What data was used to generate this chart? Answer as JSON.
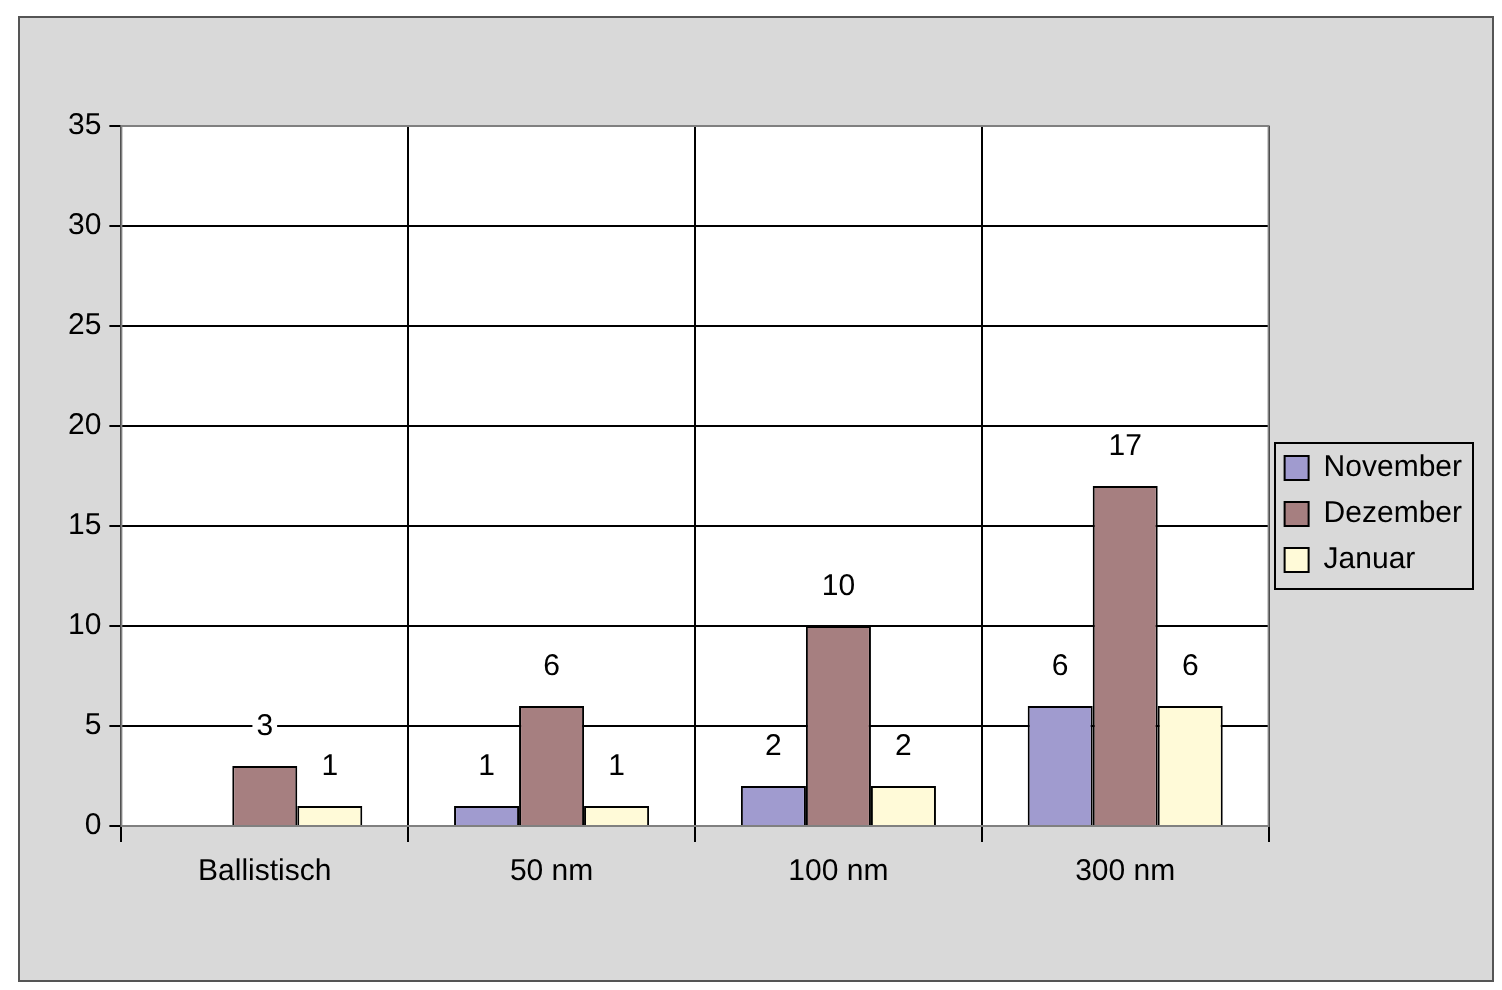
{
  "chart_data": {
    "type": "bar",
    "categories": [
      "Ballistisch",
      "50 nm",
      "100 nm",
      "300 nm"
    ],
    "series": [
      {
        "name": "November",
        "color": "#a09bcf",
        "values": [
          null,
          1,
          2,
          6
        ]
      },
      {
        "name": "Dezember",
        "color": "#a67f80",
        "values": [
          3,
          6,
          10,
          17
        ]
      },
      {
        "name": "Januar",
        "color": "#fffad8",
        "values": [
          1,
          1,
          2,
          6
        ]
      }
    ],
    "ylim": [
      0,
      35
    ],
    "yticks": [
      0,
      5,
      10,
      15,
      20,
      25,
      30,
      35
    ],
    "grid": true,
    "legend": "right",
    "data_labels": true
  }
}
